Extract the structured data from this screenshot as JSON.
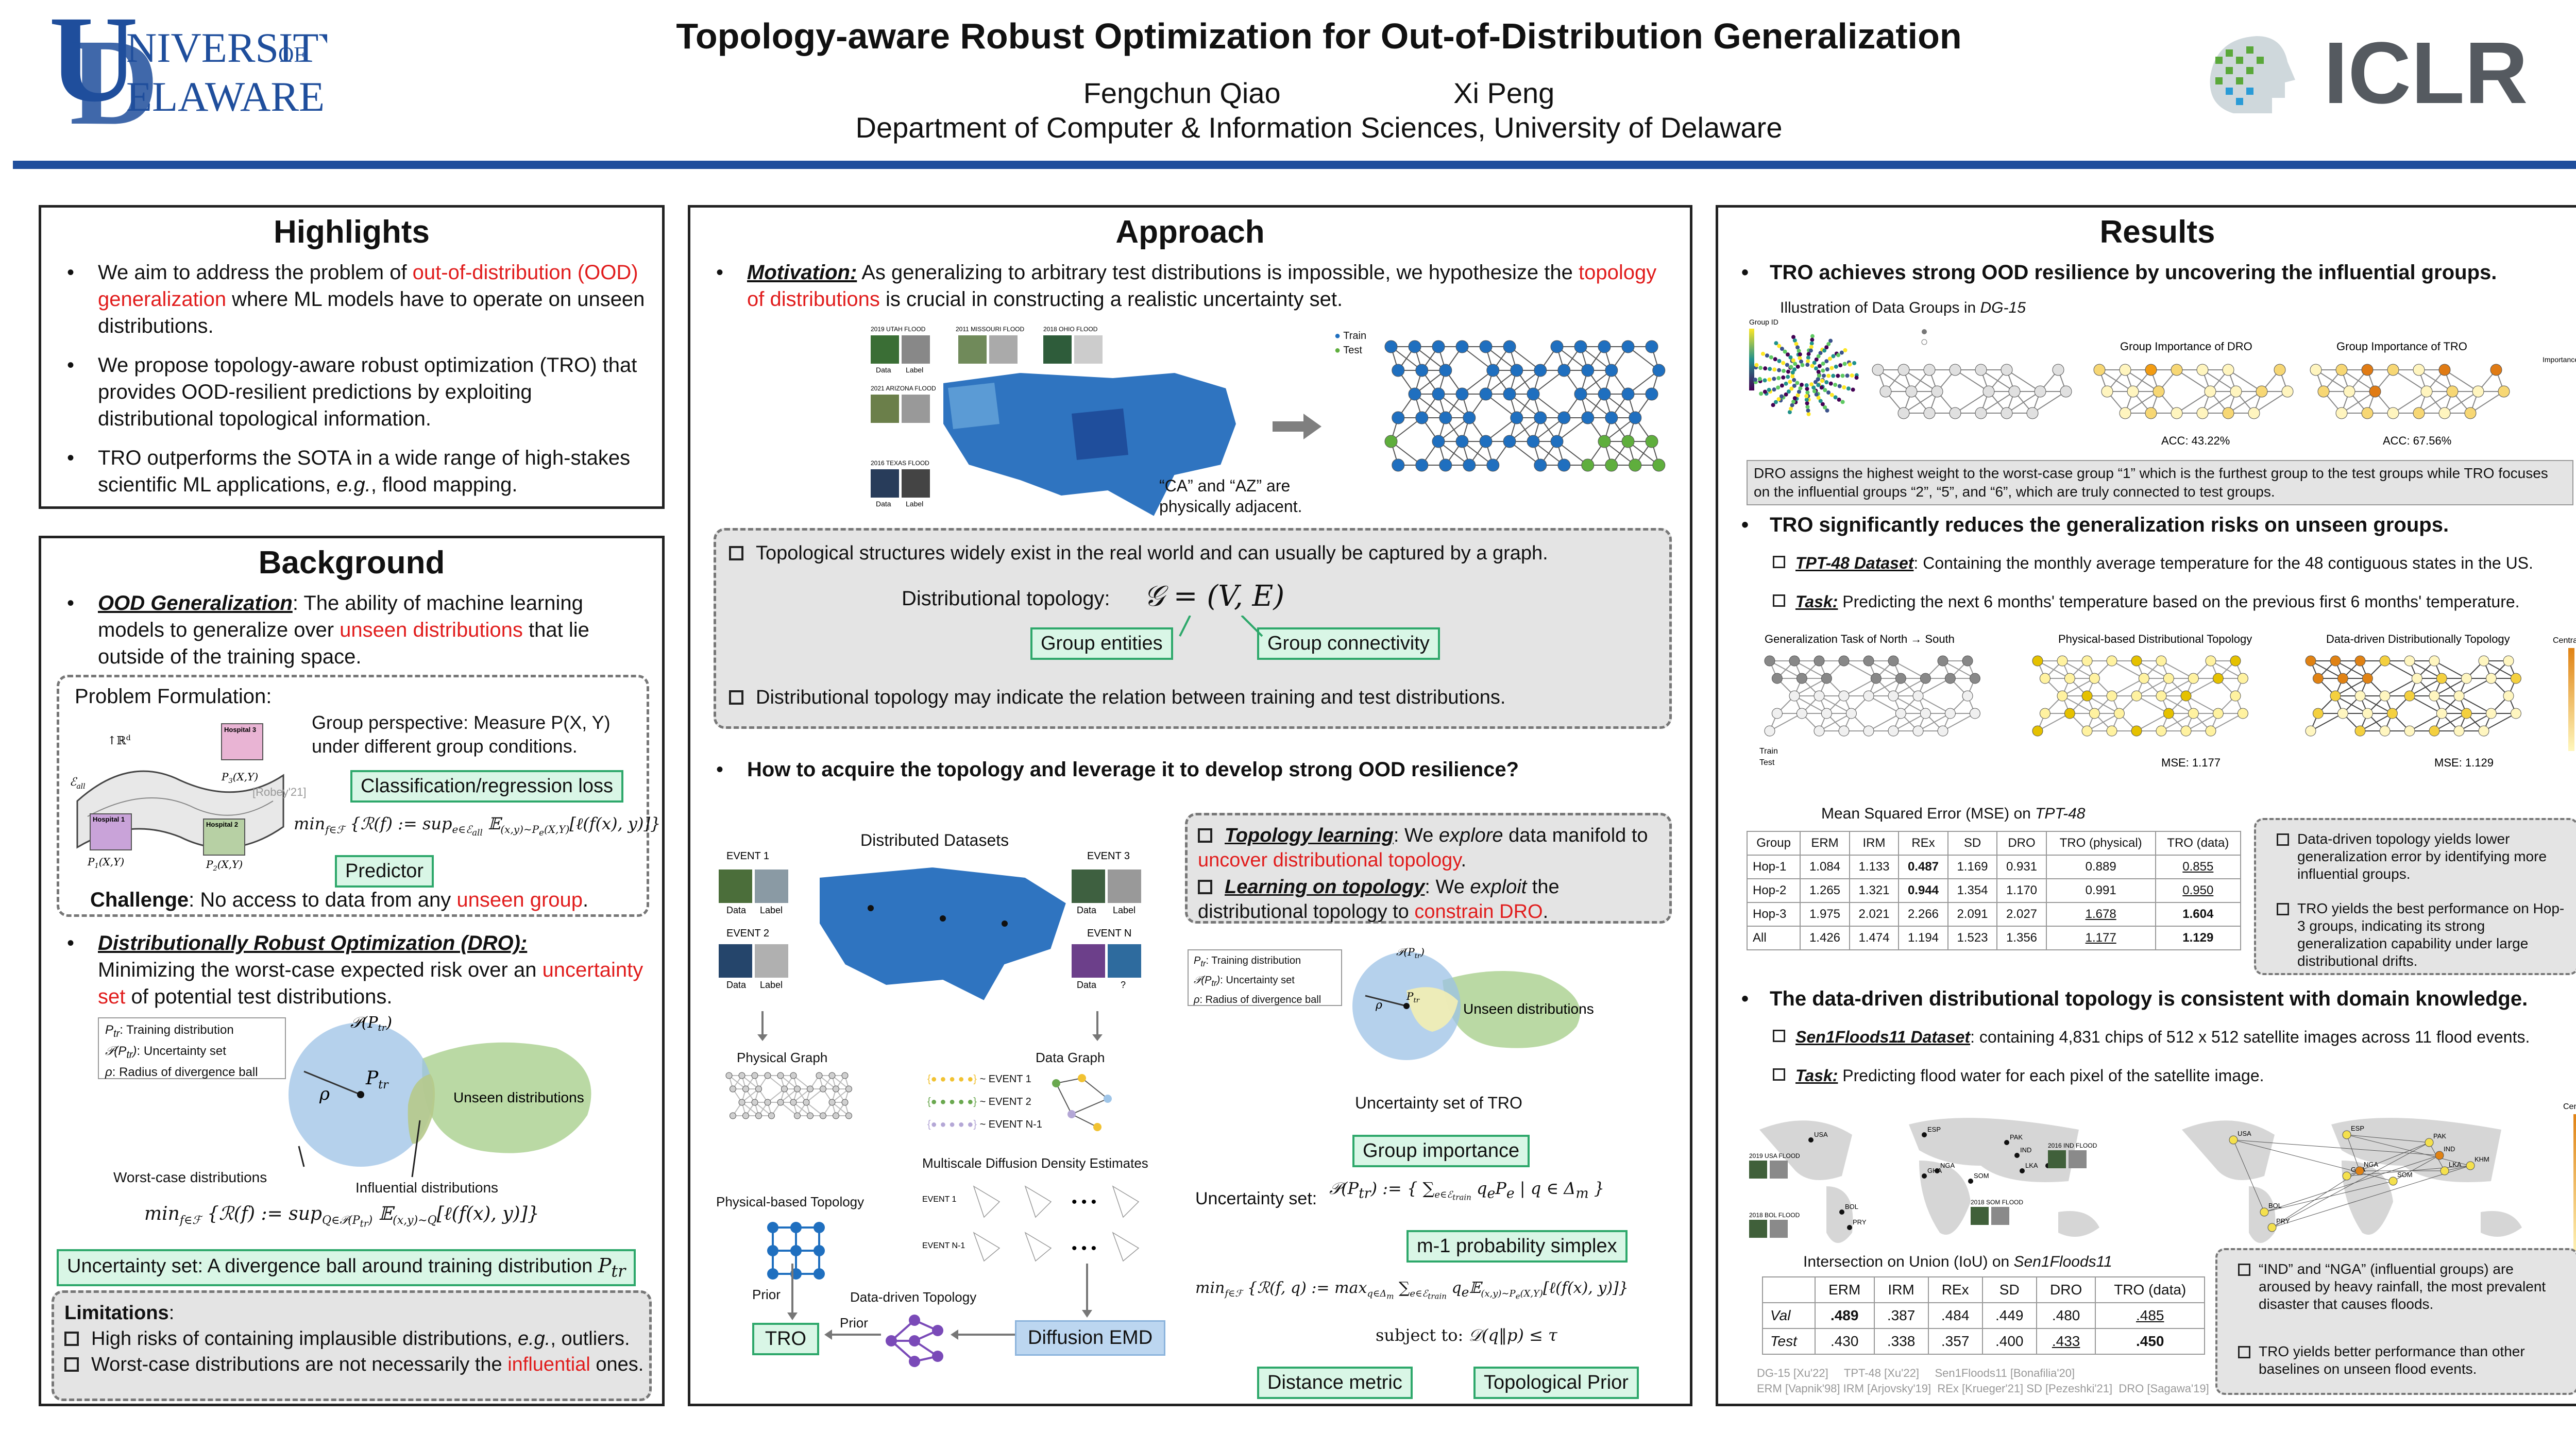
{
  "header": {
    "university_logo": "UNIVERSITY OF DELAWARE",
    "title": "Topology-aware Robust Optimization for Out-of-Distribution Generalization",
    "author1": "Fengchun Qiao",
    "author2": "Xi Peng",
    "affiliation": "Department of Computer & Information Sciences, University of Delaware",
    "conference_logo": "ICLR",
    "brand_color": "#1f4e9c"
  },
  "highlights": {
    "title": "Highlights",
    "b1": [
      "We aim to address the problem of ",
      "out-of-distribution (OOD) generalization",
      " where ML models have to operate on unseen distributions."
    ],
    "b2": "We propose topology-aware robust optimization (TRO) that provides OOD-resilient predictions by exploiting distributional topological information.",
    "b3": [
      "TRO outperforms the SOTA in a wide range of high-stakes scientific ML applications, ",
      "e.g.",
      ", flood mapping."
    ]
  },
  "background": {
    "title": "Background",
    "ood_heading": "OOD Generalization",
    "ood_text": [
      "The ability of machine learning models to generalize over ",
      "unseen distributions",
      " that lie outside of the training space."
    ],
    "problem_formulation": "Problem Formulation:",
    "group_perspective": "Group perspective: Measure P(X, Y) under different group conditions.",
    "loss_label": "Classification/regression loss",
    "predictor_label": "Predictor",
    "citation": "[Robey'21]",
    "hospital_labels": [
      "Hospital 1",
      "Hospital 2",
      "Hospital 3"
    ],
    "challenge": [
      "Challenge",
      ": No access to data from any ",
      "unseen group",
      "."
    ],
    "dro_heading": "Distributionally Robust Optimization (DRO):",
    "dro_text": [
      "Minimizing the worst-case expected risk over an ",
      "uncertainty set",
      " of potential test distributions."
    ],
    "legend": [
      "Training distribution",
      "Uncertainty set",
      "Radius of divergence ball"
    ],
    "unseen_distributions": "Unseen distributions",
    "worst_case": "Worst-case distributions",
    "influential": "Influential distributions",
    "uncertainty_label": "Uncertainty set: A divergence ball around training distribution",
    "limitations_heading": "Limitations",
    "limitation1": [
      "High risks of containing implausible distributions, ",
      "e.g.",
      ", outliers."
    ],
    "limitation2": [
      "Worst-case distributions are not necessarily the ",
      "influential",
      " ones."
    ]
  },
  "approach": {
    "title": "Approach",
    "motivation_heading": "Motivation:",
    "motivation_text": [
      "As generalizing to arbitrary test distributions is impossible, we hypothesize the ",
      "topology of distributions",
      " is crucial in constructing a realistic uncertainty set."
    ],
    "flood_labels": [
      "2019 UTAH FLOOD",
      "2011 MISSOURI FLOOD",
      "2018 OHIO FLOOD",
      "2021 ARIZONA FLOOD",
      "2016 TEXAS FLOOD"
    ],
    "data_label": "Data",
    "label_label": "Label",
    "legend_train": "Train",
    "legend_test": "Test",
    "adjacent_note": "“CA” and “AZ” are physically adjacent.",
    "topo_note1": "Topological structures widely exist in the real world and can usually be captured by a graph.",
    "dist_topology": "Distributional topology:",
    "group_entities": "Group entities",
    "group_connectivity": "Group connectivity",
    "topo_note2": "Distributional topology may indicate the relation between training and test distributions.",
    "question": "How to acquire the topology and leverage it to develop strong OOD resilience?",
    "distributed_datasets": "Distributed Datasets",
    "events": [
      "EVENT 1",
      "EVENT 2",
      "EVENT 3",
      "EVENT N"
    ],
    "topology_learning": [
      "Topology learning",
      ": We ",
      "explore",
      " data manifold to ",
      "uncover distributional topology",
      "."
    ],
    "learning_on_topology": [
      "Learning on topology",
      ": We ",
      "exploit",
      " the distributional topology to ",
      "constrain DRO",
      "."
    ],
    "physical_graph": "Physical Graph",
    "data_graph": "Data Graph",
    "event_rows": [
      "~ EVENT 1",
      "~ EVENT 2",
      "~ EVENT N-1"
    ],
    "multiscale": "Multiscale Diffusion Density Estimates",
    "physical_topology": "Physical-based Topology",
    "datadriven_topology": "Data-driven Topology",
    "prior1": "Prior",
    "prior2": "Prior",
    "tro": "TRO",
    "diffusion_emd": "Diffusion EMD",
    "uncertainty_tro": "Uncertainty set of TRO",
    "group_importance": "Group importance",
    "uncertainty_set": "Uncertainty set:",
    "simplex": "m-1 probability simplex",
    "subject_to": "subject to:",
    "distance_metric": "Distance metric",
    "topological_prior": "Topological Prior"
  },
  "results": {
    "title": "Results",
    "r1_heading": "TRO achieves strong OOD resilience by uncovering the influential groups.",
    "dg15_title": [
      "Illustration of Data Groups in ",
      "DG-15"
    ],
    "group_importance_dro": "Group Importance of DRO",
    "group_importance_tro": "Group Importance of TRO",
    "acc_dro": "ACC: 43.22%",
    "acc_tro": "ACC: 67.56%",
    "importance_label": "Importance",
    "group_id_label": "Group ID",
    "dg15_note": "DRO assigns the highest weight to the worst-case group “1” which is the furthest group to the test groups while TRO focuses on the influential groups “2”, “5”, and “6”, which are truly connected to test groups.",
    "r2_heading": "TRO significantly reduces the generalization risks on unseen groups.",
    "tpt_dataset": [
      "TPT-48 Dataset",
      ": Containing the monthly average temperature for the 48 contiguous states in the US."
    ],
    "tpt_task": [
      "Task:",
      " Predicting the next 6 months' temperature based on the previous first 6 months' temperature."
    ],
    "gen_task": "Generalization Task of North → South",
    "phys_topo": "Physical-based Distributional Topology",
    "data_topo": "Data-driven Distributionally Topology",
    "centrality": "Centrality",
    "mse_phys": "MSE: 1.177",
    "mse_data": "MSE: 1.129",
    "mse_title": [
      "Mean Squared Error (MSE) on ",
      "TPT-48"
    ],
    "mse_header": [
      "Group",
      "ERM",
      "IRM",
      "REx",
      "SD",
      "DRO",
      "TRO (physical)",
      "TRO (data)"
    ],
    "mse_rows": [
      [
        "Hop-1",
        "1.084",
        "1.133",
        "0.487",
        "1.169",
        "0.931",
        "0.889",
        "0.855"
      ],
      [
        "Hop-2",
        "1.265",
        "1.321",
        "0.944",
        "1.354",
        "1.170",
        "0.991",
        "0.950"
      ],
      [
        "Hop-3",
        "1.975",
        "2.021",
        "2.266",
        "2.091",
        "2.027",
        "1.678",
        "1.604"
      ],
      [
        "All",
        "1.426",
        "1.474",
        "1.194",
        "1.523",
        "1.356",
        "1.177",
        "1.129"
      ]
    ],
    "mse_note1": "Data-driven topology yields lower generalization error by identifying more influential groups.",
    "mse_note2": "TRO yields the best performance on Hop-3 groups, indicating its strong generalization capability under large distributional drifts.",
    "r3_heading": "The data-driven distributional topology is consistent with domain knowledge.",
    "sen_dataset": [
      "Sen1Floods11 Dataset",
      ": containing 4,831 chips of 512 x 512 satellite images across 11 flood events."
    ],
    "sen_task": [
      "Task:",
      " Predicting flood water for each pixel of the satellite image."
    ],
    "map_labels": [
      "USA",
      "ESP",
      "PAK",
      "IND",
      "GHA",
      "NGA",
      "SOM",
      "LKA",
      "KHM",
      "BOL",
      "PRY"
    ],
    "flood_labels": [
      "2019 USA FLOOD",
      "2016 IND FLOOD",
      "2018 SOM FLOOD",
      "2018 BOL FLOOD"
    ],
    "iou_title": [
      "Intersection on Union (IoU) on ",
      "Sen1Floods11"
    ],
    "iou_header": [
      "",
      "ERM",
      "IRM",
      "REx",
      "SD",
      "DRO",
      "TRO (data)"
    ],
    "iou_rows": [
      [
        "Val",
        ".489",
        ".387",
        ".484",
        ".449",
        ".480",
        ".485"
      ],
      [
        "Test",
        ".430",
        ".338",
        ".357",
        ".400",
        ".433",
        ".450"
      ]
    ],
    "iou_note1": "“IND” and “NGA” (influential groups) are aroused by heavy rainfall, the most prevalent disaster that causes floods.",
    "iou_note2": "TRO yields better performance than other baselines on unseen flood events.",
    "refs1": "DG-15 [Xu'22]     TPT-48 [Xu'22]     Sen1Floods11 [Bonafilia'20]",
    "refs2": "ERM [Vapnik'98] IRM [Arjovsky'19]  REx [Krueger'21] SD [Pezeshki'21]  DRO [Sagawa'19]"
  }
}
